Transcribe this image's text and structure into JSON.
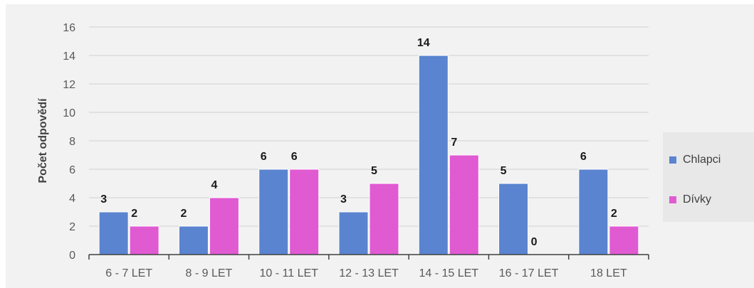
{
  "chart_data": {
    "type": "bar",
    "categories": [
      "6 - 7 LET",
      "8 - 9 LET",
      "10 - 11 LET",
      "12 - 13 LET",
      "14 - 15 LET",
      "16 - 17 LET",
      "18 LET"
    ],
    "series": [
      {
        "name": "Chlapci",
        "values": [
          3,
          2,
          6,
          3,
          14,
          5,
          6
        ],
        "color": "#5b84d0"
      },
      {
        "name": "Dívky",
        "values": [
          2,
          4,
          6,
          5,
          7,
          0,
          2
        ],
        "color": "#e05ad2"
      }
    ],
    "title": "",
    "xlabel": "",
    "ylabel": "Počet odpovědí",
    "ylim": [
      0,
      16
    ],
    "yticks": [
      0,
      2,
      4,
      6,
      8,
      10,
      12,
      14,
      16
    ],
    "grid": true,
    "data_labels": true,
    "legend_position": "right"
  }
}
